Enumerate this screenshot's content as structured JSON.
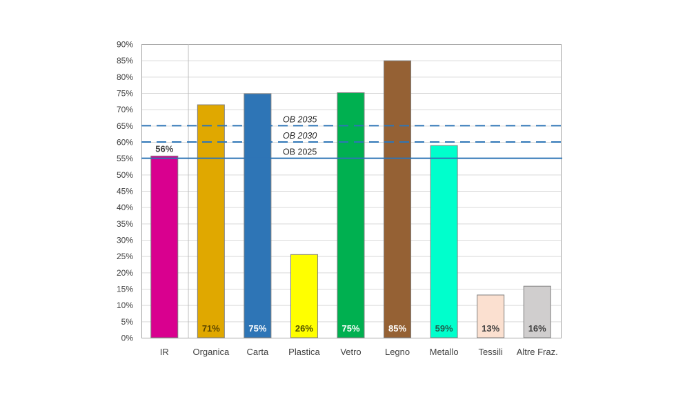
{
  "chart_data": {
    "type": "bar",
    "title": "",
    "xlabel": "",
    "ylabel": "",
    "ylim": [
      0,
      90
    ],
    "y_ticks": [
      "0%",
      "5%",
      "10%",
      "15%",
      "20%",
      "25%",
      "30%",
      "35%",
      "40%",
      "45%",
      "50%",
      "55%",
      "60%",
      "65%",
      "70%",
      "75%",
      "80%",
      "85%",
      "90%"
    ],
    "grid": true,
    "categories": [
      "IR",
      "Organica",
      "Carta",
      "Plastica",
      "Vetro",
      "Legno",
      "Metallo",
      "Tessili",
      "Altre Fraz."
    ],
    "values": [
      55.7,
      71.4,
      74.8,
      25.5,
      75.1,
      84.9,
      58.9,
      13.1,
      15.8
    ],
    "data_labels": [
      "56%",
      "71%",
      "75%",
      "26%",
      "75%",
      "85%",
      "59%",
      "13%",
      "16%"
    ],
    "colors": [
      "#d9008f",
      "#e0a800",
      "#2e75b6",
      "#ffff00",
      "#00b050",
      "#956134",
      "#00ffcc",
      "#fbe0d0",
      "#d0cece"
    ],
    "label_colors": [
      "#404040",
      "#5a4500",
      "#ffffff",
      "#505000",
      "#ffffff",
      "#ffffff",
      "#1f6050",
      "#404040",
      "#404040"
    ],
    "reference_lines": [
      {
        "label": "OB 2025",
        "value": 55,
        "style": "solid",
        "color": "#2e75b6"
      },
      {
        "label": "OB 2030",
        "value": 60,
        "style": "dashed",
        "color": "#2e75b6"
      },
      {
        "label": "OB 2035",
        "value": 65,
        "style": "dashed",
        "color": "#2e75b6"
      }
    ]
  }
}
